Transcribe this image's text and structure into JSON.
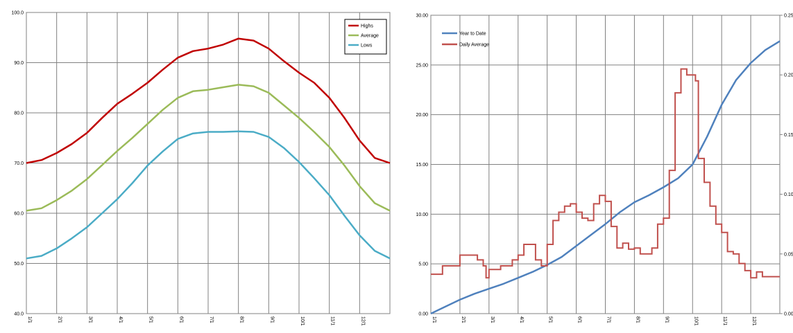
{
  "chart_data": [
    {
      "type": "line",
      "title": "",
      "xlabel": "",
      "ylabel": "",
      "x_tick_labels": [
        "1/1",
        "2/1",
        "3/1",
        "4/1",
        "5/1",
        "6/1",
        "7/1",
        "8/1",
        "9/1",
        "10/1",
        "11/1",
        "12/1"
      ],
      "y_tick_labels": [
        "40.0",
        "50.0",
        "60.0",
        "70.0",
        "80.0",
        "90.0",
        "100.0"
      ],
      "ylim": [
        40,
        100
      ],
      "x_domain_months": [
        0,
        12
      ],
      "grid": true,
      "legend_position": "top-right",
      "x": [
        0,
        0.5,
        1,
        1.5,
        2,
        2.5,
        3,
        3.5,
        4,
        4.5,
        5,
        5.5,
        6,
        6.5,
        7,
        7.5,
        8,
        8.5,
        9,
        9.5,
        10,
        10.5,
        11,
        11.5,
        12
      ],
      "series": [
        {
          "name": "Highs",
          "color": "#C00000",
          "values": [
            70.0,
            70.6,
            72.0,
            73.8,
            76.0,
            79.0,
            81.8,
            83.8,
            86.0,
            88.6,
            91.0,
            92.3,
            92.8,
            93.6,
            94.8,
            94.4,
            92.8,
            90.3,
            88.0,
            86.0,
            83.0,
            79.0,
            74.5,
            71.0,
            70.0
          ]
        },
        {
          "name": "Average",
          "color": "#9BBB59",
          "values": [
            60.5,
            61.0,
            62.6,
            64.5,
            66.8,
            69.6,
            72.4,
            75.0,
            77.8,
            80.6,
            83.0,
            84.3,
            84.6,
            85.1,
            85.6,
            85.3,
            84.0,
            81.5,
            79.0,
            76.2,
            73.2,
            69.5,
            65.4,
            62.0,
            60.5
          ]
        },
        {
          "name": "Lows",
          "color": "#4BACC6",
          "values": [
            51.0,
            51.5,
            53.0,
            55.0,
            57.2,
            60.0,
            62.8,
            66.0,
            69.5,
            72.3,
            74.8,
            75.9,
            76.2,
            76.2,
            76.3,
            76.2,
            75.2,
            73.0,
            70.2,
            67.0,
            63.6,
            59.5,
            55.6,
            52.5,
            51.0
          ]
        }
      ]
    },
    {
      "type": "line",
      "title": "",
      "xlabel": "",
      "ylabel": "",
      "x_tick_labels": [
        "1/1",
        "2/1",
        "3/1",
        "4/1",
        "5/1",
        "6/1",
        "7/1",
        "8/1",
        "9/1",
        "10/1",
        "11/1",
        "12/1"
      ],
      "y_tick_labels": [
        "0.00",
        "5.00",
        "10.00",
        "15.00",
        "20.00",
        "25.00",
        "30.00"
      ],
      "y2_tick_labels": [
        "0.00",
        "0.05",
        "0.10",
        "0.15",
        "0.20",
        "0.25"
      ],
      "ylim": [
        0,
        30
      ],
      "y2lim": [
        0,
        0.25
      ],
      "x_domain_months": [
        0,
        12
      ],
      "grid": true,
      "legend_position": "top-left",
      "series": [
        {
          "name": "Year to Date",
          "color": "#4F81BD",
          "axis": "left",
          "x": [
            0,
            0.5,
            1,
            1.5,
            2,
            2.5,
            3,
            3.5,
            4,
            4.5,
            5,
            5.5,
            6,
            6.5,
            7,
            7.5,
            8,
            8.5,
            9,
            9.5,
            10,
            10.5,
            11,
            11.5,
            12
          ],
          "values": [
            0.0,
            0.7,
            1.4,
            2.0,
            2.5,
            3.0,
            3.6,
            4.2,
            4.9,
            5.7,
            6.8,
            7.9,
            9.0,
            10.2,
            11.2,
            11.9,
            12.7,
            13.6,
            15.0,
            17.8,
            21.0,
            23.5,
            25.2,
            26.5,
            27.4
          ]
        },
        {
          "name": "Daily Average",
          "color": "#C0504D",
          "axis": "right",
          "x": [
            0,
            0.4,
            0.8,
            1,
            1.4,
            1.6,
            1.8,
            1.9,
            2,
            2.2,
            2.4,
            2.6,
            2.8,
            3,
            3.2,
            3.4,
            3.6,
            3.8,
            4,
            4.2,
            4.4,
            4.6,
            4.8,
            5,
            5.2,
            5.4,
            5.6,
            5.8,
            6,
            6.2,
            6.4,
            6.6,
            6.8,
            7,
            7.2,
            7.4,
            7.6,
            7.8,
            8,
            8.2,
            8.4,
            8.6,
            8.8,
            9,
            9.1,
            9.2,
            9.4,
            9.6,
            9.8,
            10,
            10.2,
            10.4,
            10.6,
            10.8,
            11,
            11.2,
            11.4,
            11.6,
            11.8,
            12
          ],
          "values": [
            0.033,
            0.04,
            0.04,
            0.049,
            0.049,
            0.045,
            0.04,
            0.03,
            0.037,
            0.037,
            0.04,
            0.04,
            0.045,
            0.049,
            0.058,
            0.058,
            0.045,
            0.04,
            0.058,
            0.078,
            0.085,
            0.09,
            0.092,
            0.085,
            0.08,
            0.078,
            0.092,
            0.099,
            0.094,
            0.073,
            0.055,
            0.059,
            0.054,
            0.055,
            0.05,
            0.05,
            0.055,
            0.075,
            0.08,
            0.12,
            0.185,
            0.205,
            0.2,
            0.2,
            0.195,
            0.13,
            0.11,
            0.09,
            0.075,
            0.068,
            0.052,
            0.05,
            0.042,
            0.036,
            0.03,
            0.035,
            0.031,
            0.031,
            0.031,
            0.031
          ]
        }
      ]
    }
  ]
}
